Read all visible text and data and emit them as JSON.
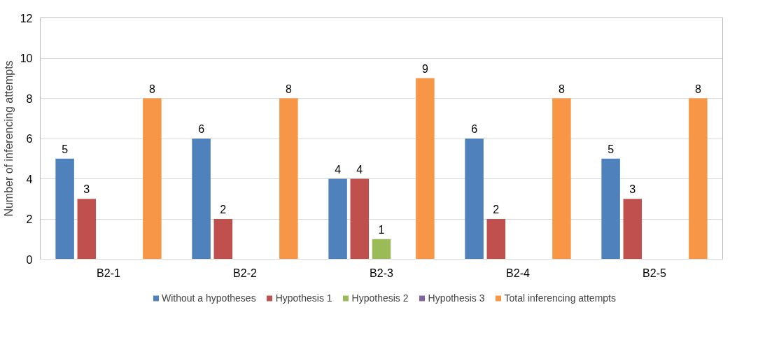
{
  "chart_data": {
    "type": "bar",
    "ylabel": "Number of inferencing attempts",
    "categories": [
      "B2-1",
      "B2-2",
      "B2-3",
      "B2-4",
      "B2-5"
    ],
    "ylim": [
      0,
      12
    ],
    "yticks": [
      0,
      2,
      4,
      6,
      8,
      10,
      12
    ],
    "grid": "y",
    "legend": "bottom",
    "series": [
      {
        "name": "Without a hypotheses",
        "color": "#4f81bd",
        "values": [
          5,
          6,
          4,
          6,
          5
        ],
        "value_labels": [
          "5",
          "6",
          "4",
          "6",
          "5"
        ]
      },
      {
        "name": "Hypothesis 1",
        "color": "#c0504d",
        "values": [
          3,
          2,
          4,
          2,
          3
        ],
        "value_labels": [
          "3",
          "2",
          "4",
          "2",
          "3"
        ]
      },
      {
        "name": "Hypothesis 2",
        "color": "#9bbb59",
        "values": [
          0,
          0,
          1,
          0,
          0
        ],
        "value_labels": [
          null,
          null,
          "1",
          null,
          null
        ]
      },
      {
        "name": "Hypothesis 3",
        "color": "#8064a2",
        "values": [
          0,
          0,
          0,
          0,
          0
        ],
        "value_labels": [
          null,
          null,
          null,
          null,
          null
        ]
      },
      {
        "name": "Total inferencing attempts",
        "color": "#f79646",
        "values": [
          8,
          8,
          9,
          8,
          8
        ],
        "value_labels": [
          "8",
          "8",
          "9",
          "8",
          "8"
        ]
      }
    ]
  }
}
